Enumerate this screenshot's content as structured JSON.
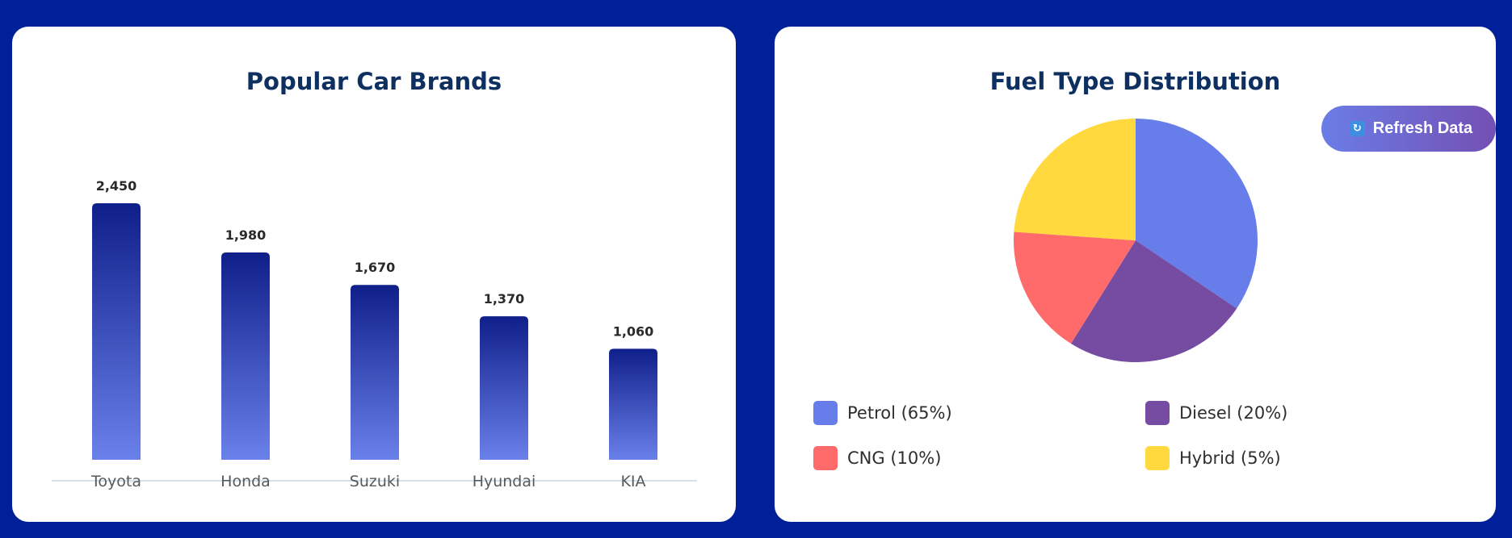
{
  "bar_card": {
    "title": "Popular Car Brands"
  },
  "pie_card": {
    "title": "Fuel Type Distribution",
    "refresh_label": "Refresh Data",
    "refresh_icon": "refresh-icon"
  },
  "colors": {
    "background": "#00209a",
    "card": "#ffffff",
    "title": "#0d3060",
    "bar_top": "#0f1f8a",
    "bar_bottom": "#6a80ea",
    "petrol": "#677eea",
    "diesel": "#764ba2",
    "cng": "#ff6b6b",
    "hybrid": "#ffd93d"
  },
  "legend": [
    {
      "label": "Petrol (65%)",
      "color": "#677eea"
    },
    {
      "label": "Diesel (20%)",
      "color": "#764ba2"
    },
    {
      "label": "CNG (10%)",
      "color": "#ff6b6b"
    },
    {
      "label": "Hybrid (5%)",
      "color": "#ffd93d"
    }
  ],
  "chart_data": [
    {
      "type": "bar",
      "title": "Popular Car Brands",
      "categories": [
        "Toyota",
        "Honda",
        "Suzuki",
        "Hyundai",
        "KIA"
      ],
      "values": [
        2450,
        1980,
        1670,
        1370,
        1060
      ],
      "value_labels": [
        "2,450",
        "1,980",
        "1,670",
        "1,370",
        "1,060"
      ],
      "ylim": [
        0,
        2450
      ],
      "grid": false
    },
    {
      "type": "pie",
      "title": "Fuel Type Distribution",
      "categories": [
        "Petrol",
        "Diesel",
        "CNG",
        "Hybrid"
      ],
      "values": [
        65,
        20,
        10,
        5
      ],
      "legend_position": "bottom"
    }
  ]
}
